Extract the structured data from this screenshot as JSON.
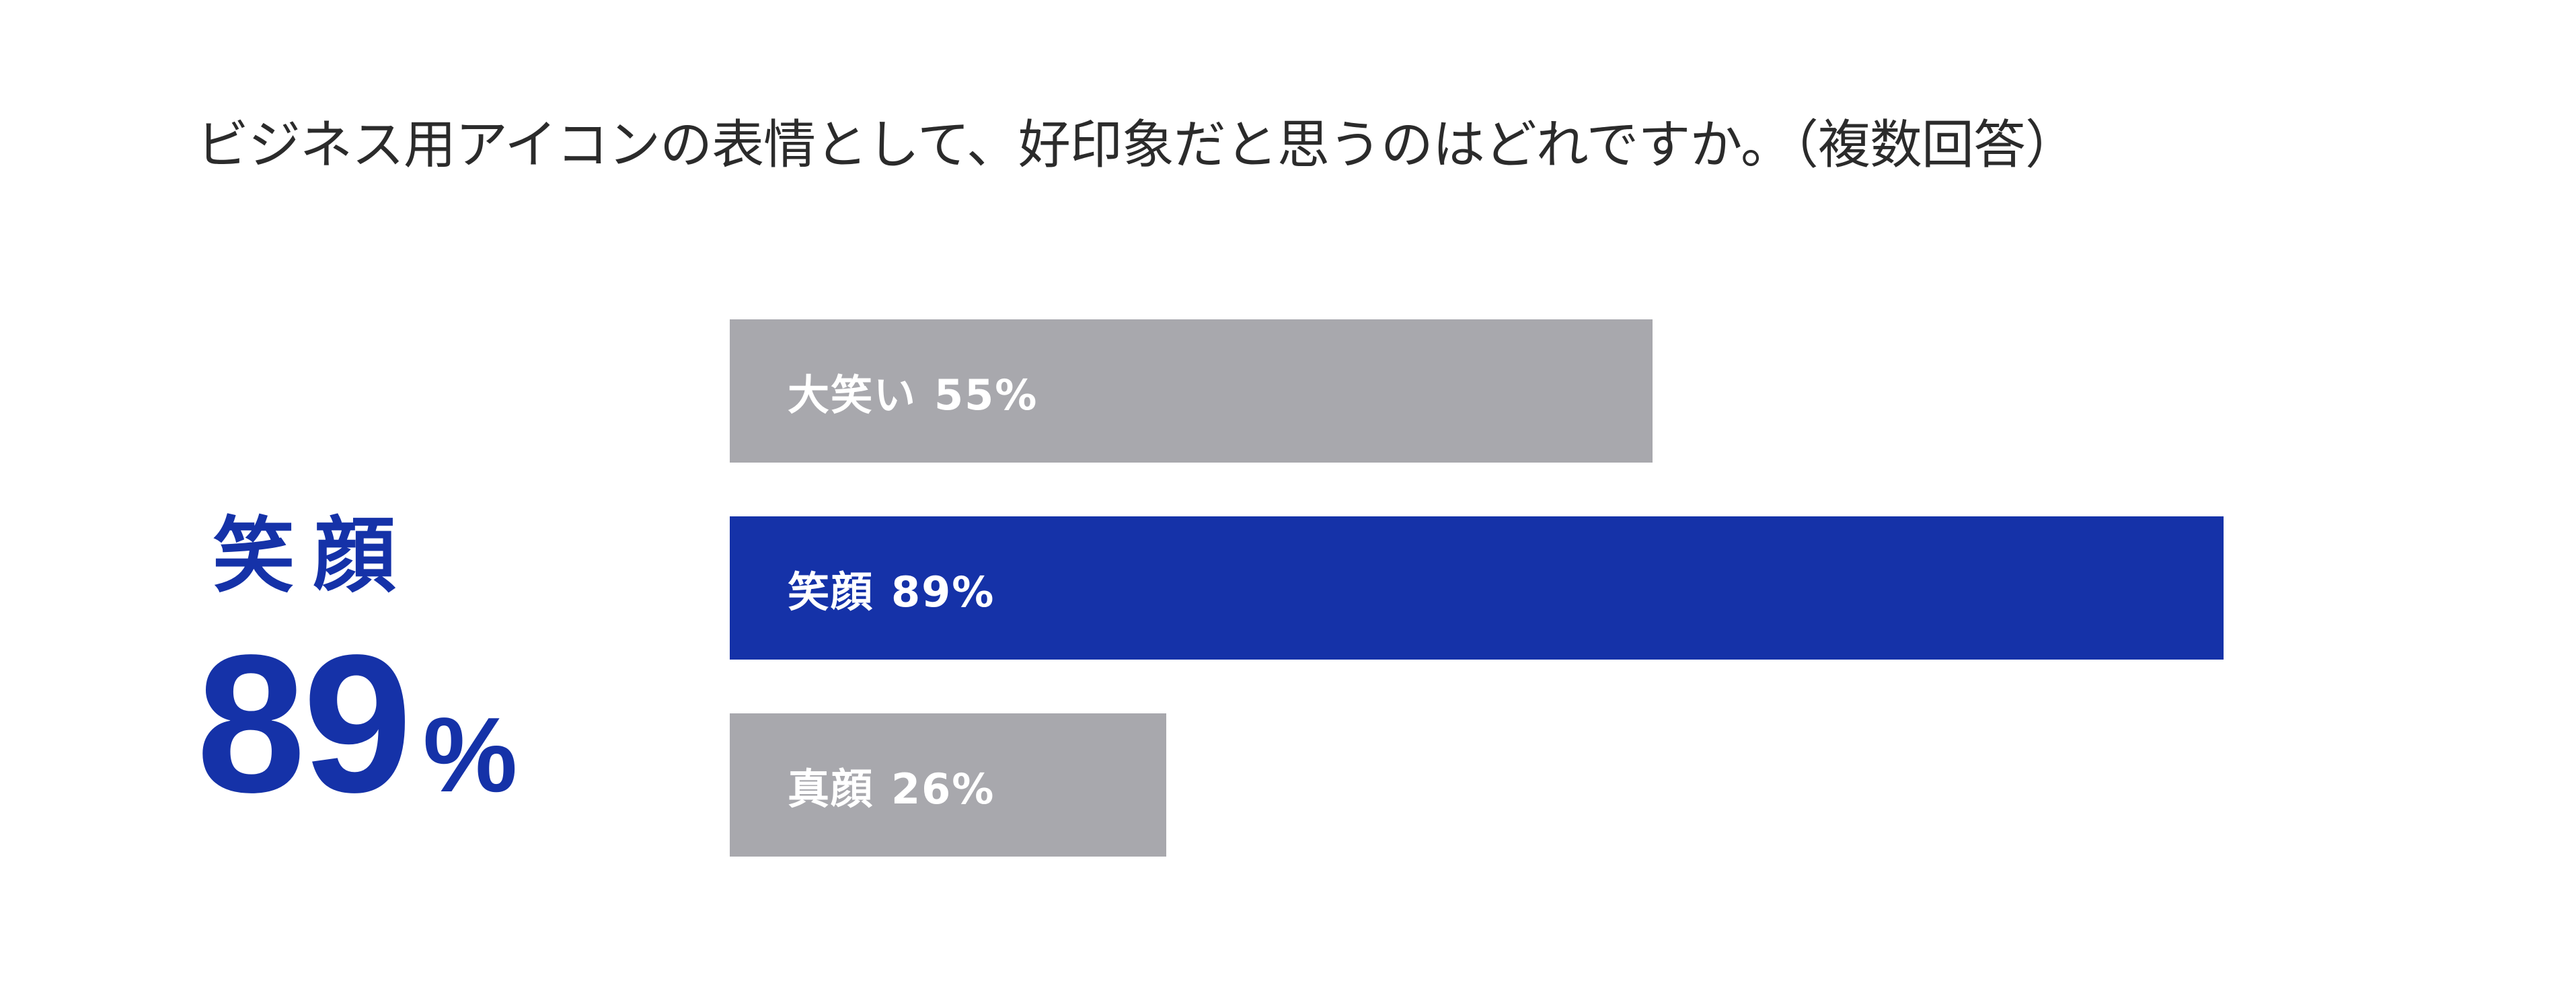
{
  "question": "ビジネス用アイコンの表情として、好印象だと思うのはどれですか。（複数回答）",
  "highlight": {
    "label": "笑顔",
    "value": "89",
    "unit": "%"
  },
  "colors": {
    "accent": "#1532a8",
    "muted": "#a8a8ad"
  },
  "chart_data": {
    "type": "bar",
    "orientation": "horizontal",
    "categories": [
      "大笑い",
      "笑顔",
      "真顔"
    ],
    "values": [
      55,
      89,
      26
    ],
    "value_labels": [
      "55%",
      "89%",
      "26%"
    ],
    "highlighted_category": "笑顔",
    "xlim": [
      0,
      100
    ],
    "grid": false,
    "legend": "none"
  }
}
